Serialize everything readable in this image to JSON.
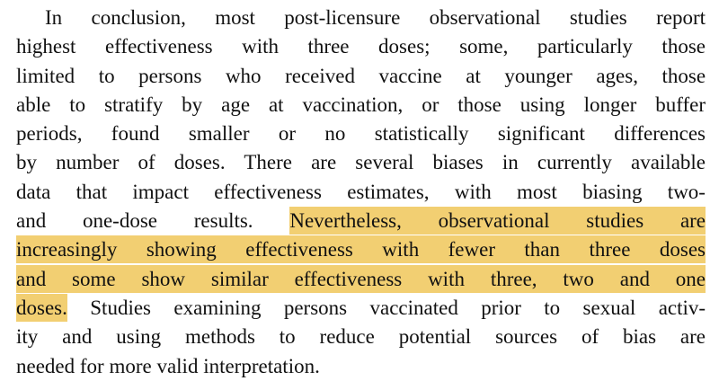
{
  "highlight_color": "#f2cf72",
  "lines": [
    {
      "segments": [
        {
          "text": "In conclusion, most post-licensure observational studies report",
          "hl": false
        }
      ]
    },
    {
      "segments": [
        {
          "text": "highest effectiveness with three doses; some, particularly those",
          "hl": false
        }
      ]
    },
    {
      "segments": [
        {
          "text": "limited to persons who received vaccine at younger ages, those",
          "hl": false
        }
      ]
    },
    {
      "segments": [
        {
          "text": "able to stratify by age at vaccination, or those using longer buffer",
          "hl": false
        }
      ]
    },
    {
      "segments": [
        {
          "text": "periods, found smaller or no statistically significant differences",
          "hl": false
        }
      ]
    },
    {
      "segments": [
        {
          "text": "by number of doses. There are several biases in currently available",
          "hl": false
        }
      ]
    },
    {
      "segments": [
        {
          "text": "data that impact effectiveness estimates, with most biasing two-",
          "hl": false
        }
      ]
    },
    {
      "segments": [
        {
          "text": "and one-dose results.",
          "hl": false
        },
        {
          "text": "Nevertheless, observational studies are",
          "hl": true
        }
      ]
    },
    {
      "segments": [
        {
          "text": "increasingly showing effectiveness with fewer than three doses",
          "hl": true
        }
      ]
    },
    {
      "segments": [
        {
          "text": "and some show similar effectiveness with three, two and one",
          "hl": true
        }
      ]
    },
    {
      "segments": [
        {
          "text": "doses.",
          "hl": true
        },
        {
          "text": "Studies examining persons vaccinated prior to sexual activ-",
          "hl": false
        }
      ]
    },
    {
      "segments": [
        {
          "text": "ity and using methods to reduce potential sources of bias are",
          "hl": false
        }
      ]
    },
    {
      "segments": [
        {
          "text": "needed for more valid interpretation.",
          "hl": false
        }
      ]
    }
  ]
}
